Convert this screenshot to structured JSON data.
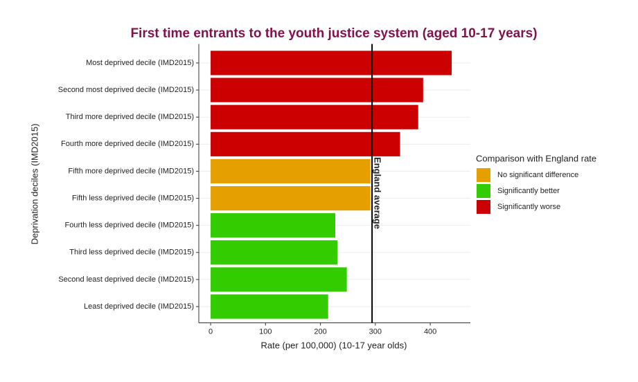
{
  "chart_data": {
    "type": "bar",
    "orientation": "horizontal",
    "title": "First time entrants to the youth justice system (aged 10-17 years)",
    "x_label": "Rate (per 100,000) (10-17 year olds)",
    "y_label": "Deprivation deciles (IMD2015)",
    "categories": [
      "Most deprived decile (IMD2015)",
      "Second most deprived decile (IMD2015)",
      "Third more deprived decile (IMD2015)",
      "Fourth more deprived decile (IMD2015)",
      "Fifth more deprived decile (IMD2015)",
      "Fifth less deprived decile (IMD2015)",
      "Fourth less deprived decile (IMD2015)",
      "Third less deprived decile (IMD2015)",
      "Second least deprived decile (IMD2015)",
      "Least deprived decile (IMD2015)"
    ],
    "legend_title": "Comparison with England rate",
    "series": [
      {
        "name": "No significant difference",
        "color": "#e5a000",
        "values": [
          null,
          null,
          null,
          null,
          291,
          291,
          null,
          null,
          null,
          null
        ]
      },
      {
        "name": "Significantly better",
        "color": "#33cc00",
        "values": [
          null,
          null,
          null,
          null,
          null,
          null,
          227,
          231,
          248,
          214
        ]
      },
      {
        "name": "Significantly worse",
        "color": "#cc0000",
        "values": [
          439,
          387,
          378,
          345,
          null,
          null,
          null,
          null,
          null,
          null
        ]
      }
    ],
    "reference_line": {
      "value": 294,
      "label": "England average"
    },
    "xlim": [
      -21.5,
      473
    ],
    "xticks": [
      0,
      100,
      200,
      300,
      400
    ],
    "grid": true
  }
}
